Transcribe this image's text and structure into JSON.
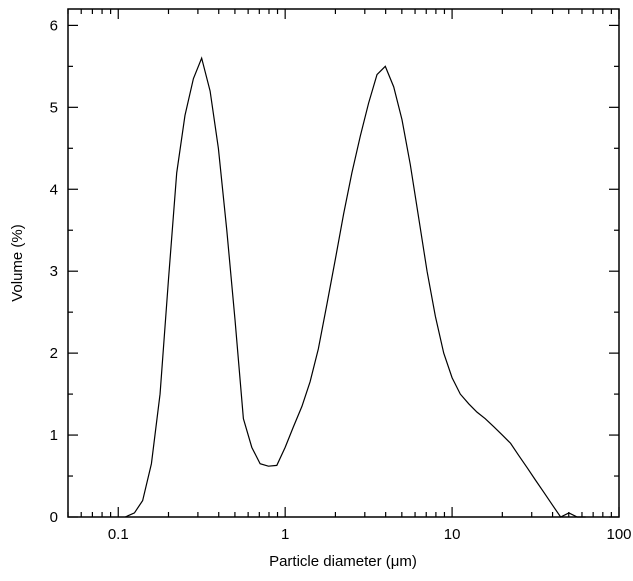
{
  "chart_data": {
    "type": "line",
    "title": "",
    "xlabel": "Particle diameter (μm)",
    "ylabel": "Volume (%)",
    "xscale": "log",
    "xlim": [
      0.05,
      100
    ],
    "ylim": [
      0,
      6.2
    ],
    "grid": false,
    "x_tick_labels": [
      "0.1",
      "1",
      "10",
      "100"
    ],
    "x_tick_values": [
      0.1,
      1,
      10,
      100
    ],
    "y_tick_labels": [
      "0",
      "1",
      "2",
      "3",
      "4",
      "5",
      "6"
    ],
    "y_tick_values": [
      0,
      1,
      2,
      3,
      4,
      5,
      6
    ],
    "series": [
      {
        "color": "#000000",
        "x": [
          0.11,
          0.125,
          0.14,
          0.158,
          0.178,
          0.2,
          0.224,
          0.251,
          0.282,
          0.316,
          0.355,
          0.398,
          0.447,
          0.501,
          0.562,
          0.631,
          0.708,
          0.794,
          0.891,
          1.0,
          1.12,
          1.26,
          1.41,
          1.58,
          1.78,
          2.0,
          2.24,
          2.51,
          2.82,
          3.16,
          3.55,
          3.98,
          4.47,
          5.01,
          5.62,
          6.31,
          7.08,
          7.94,
          8.91,
          10.0,
          11.2,
          12.6,
          14.1,
          15.8,
          17.8,
          20.0,
          22.4,
          25.1,
          28.2,
          31.6,
          35.5,
          39.8,
          44.7,
          50.1,
          56.2,
          63.1
        ],
        "y": [
          0.0,
          0.05,
          0.2,
          0.65,
          1.5,
          2.9,
          4.2,
          4.9,
          5.35,
          5.6,
          5.2,
          4.5,
          3.5,
          2.4,
          1.2,
          0.85,
          0.65,
          0.62,
          0.63,
          0.85,
          1.1,
          1.35,
          1.65,
          2.05,
          2.6,
          3.15,
          3.7,
          4.2,
          4.65,
          5.05,
          5.4,
          5.5,
          5.25,
          4.85,
          4.3,
          3.65,
          3.0,
          2.45,
          2.0,
          1.7,
          1.5,
          1.38,
          1.28,
          1.2,
          1.1,
          1.0,
          0.9,
          0.75,
          0.6,
          0.45,
          0.3,
          0.15,
          0.0,
          0.05,
          0.0,
          0.0
        ]
      }
    ]
  }
}
